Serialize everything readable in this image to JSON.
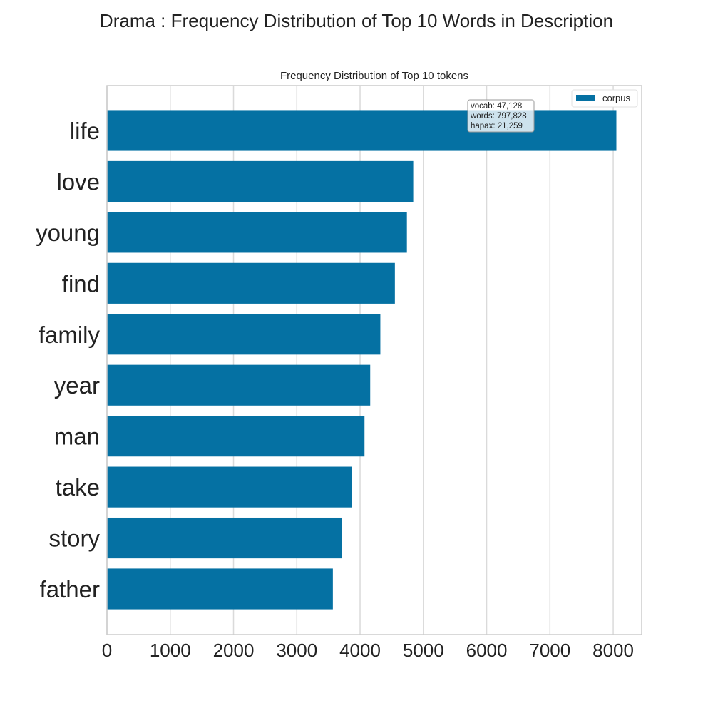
{
  "figure_title": "Drama : Frequency Distribution of Top 10 Words in Description",
  "colors": {
    "bar": "#0571a3",
    "grid": "#dadada",
    "frame": "#cccccc"
  },
  "chart_data": {
    "type": "bar",
    "orientation": "horizontal",
    "title": "Frequency Distribution of Top 10 tokens",
    "categories": [
      "life",
      "love",
      "young",
      "find",
      "family",
      "year",
      "man",
      "take",
      "story",
      "father"
    ],
    "series": [
      {
        "name": "corpus",
        "values": [
          8050,
          4840,
          4740,
          4550,
          4320,
          4160,
          4070,
          3870,
          3710,
          3570
        ]
      }
    ],
    "xlim": [
      0,
      8450
    ],
    "x_ticks": [
      0,
      1000,
      2000,
      3000,
      4000,
      5000,
      6000,
      7000,
      8000
    ],
    "grid": true,
    "legend": "top-right",
    "annotation": [
      "vocab: 47,128",
      "words: 797,828",
      "hapax: 21,259"
    ]
  }
}
